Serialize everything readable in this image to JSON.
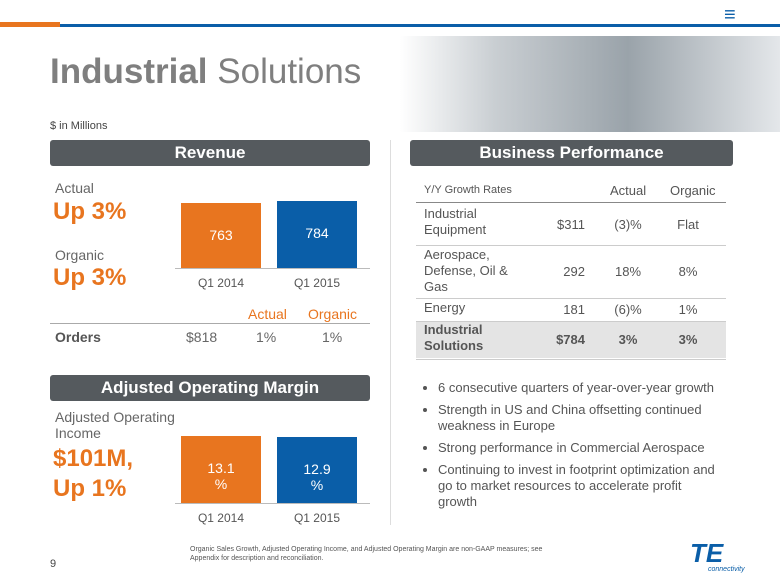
{
  "header": {
    "title_bold": "Industrial",
    "title_rest": "Solutions",
    "units": "$ in Millions"
  },
  "revenue": {
    "heading": "Revenue",
    "actual_label": "Actual",
    "actual_value": "Up 3%",
    "organic_label": "Organic",
    "organic_value": "Up 3%"
  },
  "chart_data": [
    {
      "type": "bar",
      "categories": [
        "Q1 2014",
        "Q1 2015"
      ],
      "values": [
        763,
        784
      ],
      "colors": [
        "#e8751f",
        "#0a5ea8"
      ]
    },
    {
      "type": "bar",
      "categories": [
        "Q1 2014",
        "Q1 2015"
      ],
      "values": [
        13.1,
        12.9
      ],
      "value_labels": [
        "13.1 %",
        "12.9 %"
      ],
      "colors": [
        "#e8751f",
        "#0a5ea8"
      ]
    }
  ],
  "orders": {
    "columns": [
      "Actual",
      "Organic"
    ],
    "label": "Orders",
    "amount": "$818",
    "actual": "1%",
    "organic": "1%"
  },
  "margin": {
    "heading": "Adjusted Operating Margin",
    "income_label": "Adjusted Operating Income",
    "income_value": "$101M, Up 1%"
  },
  "performance": {
    "heading": "Business Performance",
    "columns": [
      "Y/Y Growth Rates",
      "Actual",
      "Organic"
    ],
    "rows": [
      [
        "Industrial Equipment",
        "$311",
        "(3)%",
        "Flat"
      ],
      [
        "Aerospace, Defense, Oil & Gas",
        "292",
        "18%",
        "8%"
      ],
      [
        "Energy",
        "181",
        "(6)%",
        "1%"
      ],
      [
        "Industrial Solutions",
        "$784",
        "3%",
        "3%"
      ]
    ]
  },
  "bullets": [
    "6 consecutive quarters of year-over-year growth",
    "Strength in US and China offsetting continued weakness in Europe",
    "Strong performance in Commercial Aerospace",
    "Continuing to invest in footprint optimization and go to market resources to accelerate profit growth"
  ],
  "footer": {
    "page": "9",
    "note": "Organic Sales Growth, Adjusted Operating Income, and Adjusted Operating Margin are non-GAAP measures; see Appendix for description and reconciliation."
  },
  "logo": {
    "text": "TE",
    "tagline": "connectivity"
  }
}
